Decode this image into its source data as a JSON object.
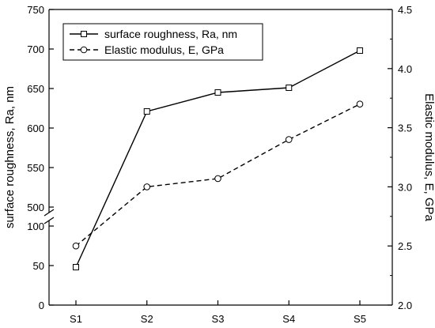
{
  "chart_data": {
    "type": "line",
    "categories": [
      "S1",
      "S2",
      "S3",
      "S4",
      "S5"
    ],
    "series": [
      {
        "name": "surface roughness, Ra, nm",
        "axis": "left",
        "values": [
          48,
          621,
          645,
          651,
          698
        ],
        "line_style": "solid",
        "marker": "square"
      },
      {
        "name": "Elastic modulus, E, GPa",
        "axis": "right",
        "values": [
          2.5,
          3.0,
          3.07,
          3.4,
          3.7
        ],
        "line_style": "dashed",
        "marker": "circle"
      }
    ],
    "ylabel": "surface roughness, Ra, nm",
    "y2label": "Elastic modulus, E, GPa",
    "xlabel": "",
    "title": "",
    "left_axis": {
      "broken": true,
      "lower_segment": {
        "range": [
          0,
          100
        ],
        "ticks": [
          0,
          50,
          100
        ]
      },
      "upper_segment": {
        "range": [
          500,
          750
        ],
        "ticks": [
          500,
          550,
          600,
          650,
          700,
          750
        ]
      }
    },
    "y2lim": [
      2.0,
      4.5
    ],
    "y2ticks": [
      "2.0",
      "2.5",
      "3.0",
      "3.5",
      "4.0",
      "4.5"
    ],
    "legend_position": "top-left",
    "grid": false,
    "colors": {
      "line": "#000000",
      "marker_fill": "#ffffff"
    }
  }
}
